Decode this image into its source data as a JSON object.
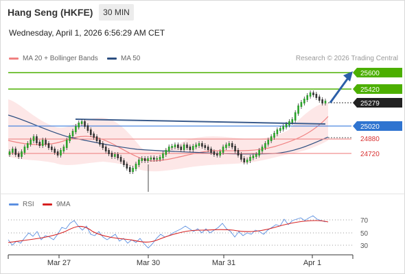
{
  "header": {
    "title": "Hang Seng (HKFE)",
    "timeframe": "30 MIN"
  },
  "date_line": "Wednesday, April 1, 2026 6:56:29 AM CET",
  "legend": {
    "ma20": "MA 20 + Bollinger Bands",
    "ma50": "MA 50"
  },
  "credit": "Research © 2026 Trading Central",
  "rsi_legend": {
    "rsi": "RSI",
    "ma9": "9MA"
  },
  "colors": {
    "resistance": "#4caf00",
    "support": "#e03a3a",
    "current": "#222222",
    "pivot": "#2f74d0",
    "ma20": "#f08080",
    "ma50": "#2c4e80",
    "arrow": "#2c5fa8",
    "rsi": "#5b8fe0",
    "rsi_ma": "#d62020"
  },
  "chart_data": {
    "type": "candlestick",
    "price_axis": {
      "min": 24500,
      "max": 25700
    },
    "x_labels": [
      "Mar 27",
      "Mar 30",
      "Mar 31",
      "Apr 1"
    ],
    "levels": {
      "resistance": [
        25600,
        25420
      ],
      "current": 25279,
      "pivot": 25020,
      "support": [
        24880,
        24720
      ]
    },
    "rsi": {
      "ticks": [
        70,
        50,
        30
      ]
    }
  }
}
